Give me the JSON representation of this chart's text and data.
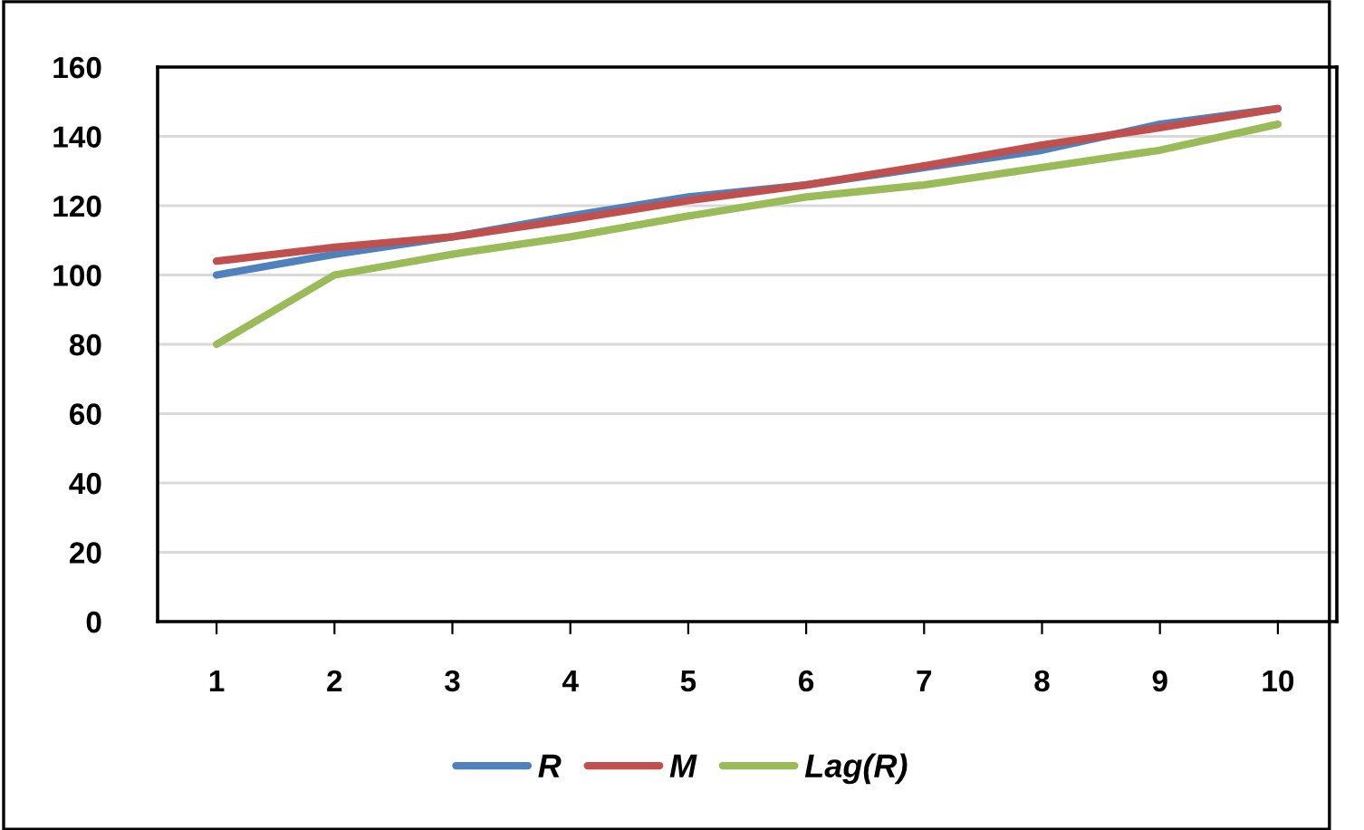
{
  "chart_data": {
    "type": "line",
    "categories": [
      "1",
      "2",
      "3",
      "4",
      "5",
      "6",
      "7",
      "8",
      "9",
      "10"
    ],
    "series": [
      {
        "name": "R",
        "color": "#4f81bd",
        "values": [
          100,
          106,
          111,
          117,
          122.5,
          126,
          131,
          136,
          143.5,
          148
        ]
      },
      {
        "name": "M",
        "color": "#c0504d",
        "values": [
          104,
          108,
          111,
          116,
          121.5,
          126,
          131.5,
          137.5,
          142.5,
          148
        ]
      },
      {
        "name": "Lag(R)",
        "color": "#9bbb59",
        "values": [
          80,
          100,
          106,
          111,
          117,
          122.5,
          126,
          131,
          136,
          143.5
        ]
      }
    ],
    "ylim": [
      0,
      160
    ],
    "yticks": [
      0,
      20,
      40,
      60,
      80,
      100,
      120,
      140,
      160
    ],
    "grid": "y",
    "legend": "bottom",
    "marker": "none",
    "line_style": "solid"
  }
}
